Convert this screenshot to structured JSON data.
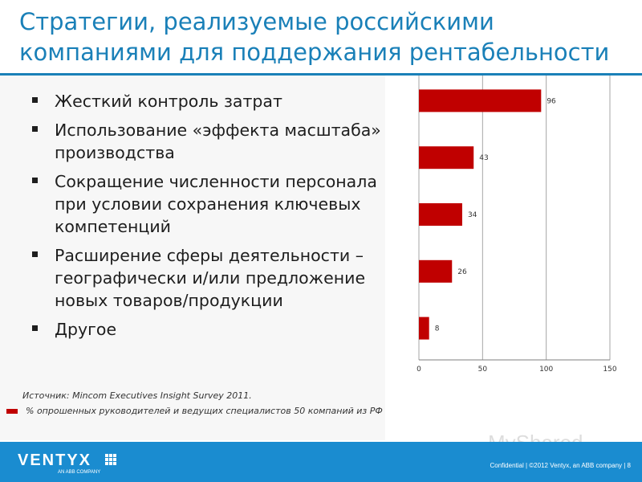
{
  "header": {
    "title": "Стратегии, реализуемые российскими компаниями для поддержания рентабельности"
  },
  "bullets": [
    "Жесткий контроль затрат",
    "Использование «эффекта масштаба» производства",
    "Сокращение численности персонала при условии сохранения ключевых компетенций",
    "Расширение сферы деятельности – географически и/или предложение новых товаров/продукции",
    "Другое"
  ],
  "notes": {
    "source": "Источник: Mincom Executives Insight Survey 2011.",
    "legend_label": "% опрошенных руководителей и ведущих специалистов 50 компаний из РФ"
  },
  "colors": {
    "bar": "#c00000",
    "accent": "#1a80b8",
    "footer": "#1a8cd0"
  },
  "chart_data": {
    "type": "bar",
    "orientation": "horizontal",
    "categories": [
      "Жесткий контроль затрат",
      "Использование «эффекта масштаба» производства",
      "Сокращение численности персонала при условии сохранения ключевых компетенций",
      "Расширение сферы деятельности – географически и/или предложение новых товаров/продукции",
      "Другое"
    ],
    "values": [
      96,
      43,
      34,
      26,
      8
    ],
    "data_labels": [
      "96",
      "43",
      "34",
      "26",
      "8"
    ],
    "xlim": [
      0,
      150
    ],
    "x_ticks": [
      "0",
      "50",
      "100",
      "150"
    ],
    "grid": true,
    "series": [
      {
        "name": "% опрошенных руководителей и ведущих специалистов 50 компаний из РФ",
        "values": [
          96,
          43,
          34,
          26,
          8
        ]
      }
    ]
  },
  "footer": {
    "logo": "VENTYX",
    "logo_sub": "AN ABB COMPANY",
    "text": "Confidential | ©2012 Ventyx, an ABB company | 8"
  },
  "watermark": "MyShared"
}
